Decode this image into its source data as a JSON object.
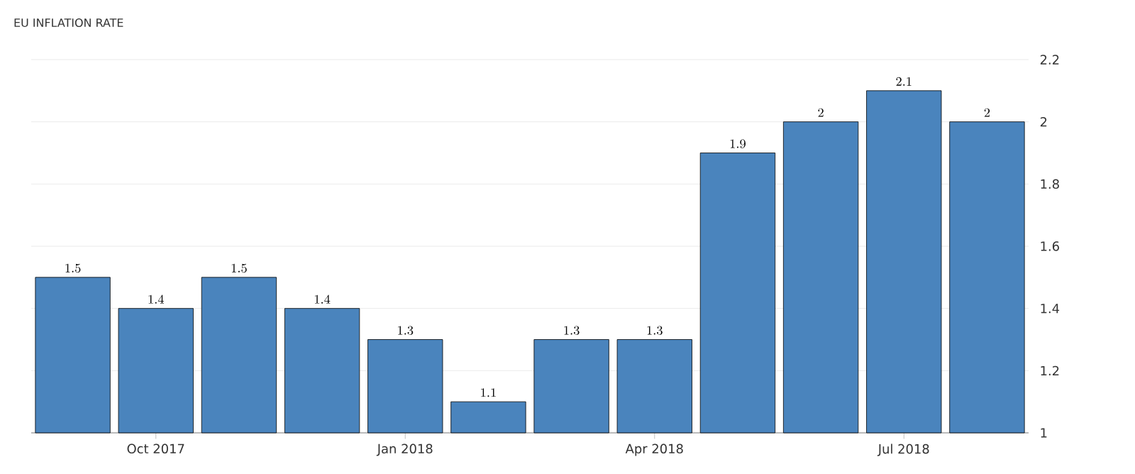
{
  "chart_data": {
    "type": "bar",
    "title": "EU INFLATION RATE",
    "categories": [
      null,
      "Oct 2017",
      null,
      null,
      "Jan 2018",
      null,
      null,
      "Apr 2018",
      null,
      null,
      "Jul 2018",
      null
    ],
    "values": [
      1.5,
      1.4,
      1.5,
      1.4,
      1.3,
      1.1,
      1.3,
      1.3,
      1.9,
      2,
      2.1,
      2
    ],
    "color": "#4a84bd",
    "ylim": [
      1,
      2.2
    ],
    "yticks": [
      1,
      1.2,
      1.4,
      1.6,
      1.8,
      2,
      2.2
    ],
    "grid": "y",
    "data_labels": true
  }
}
